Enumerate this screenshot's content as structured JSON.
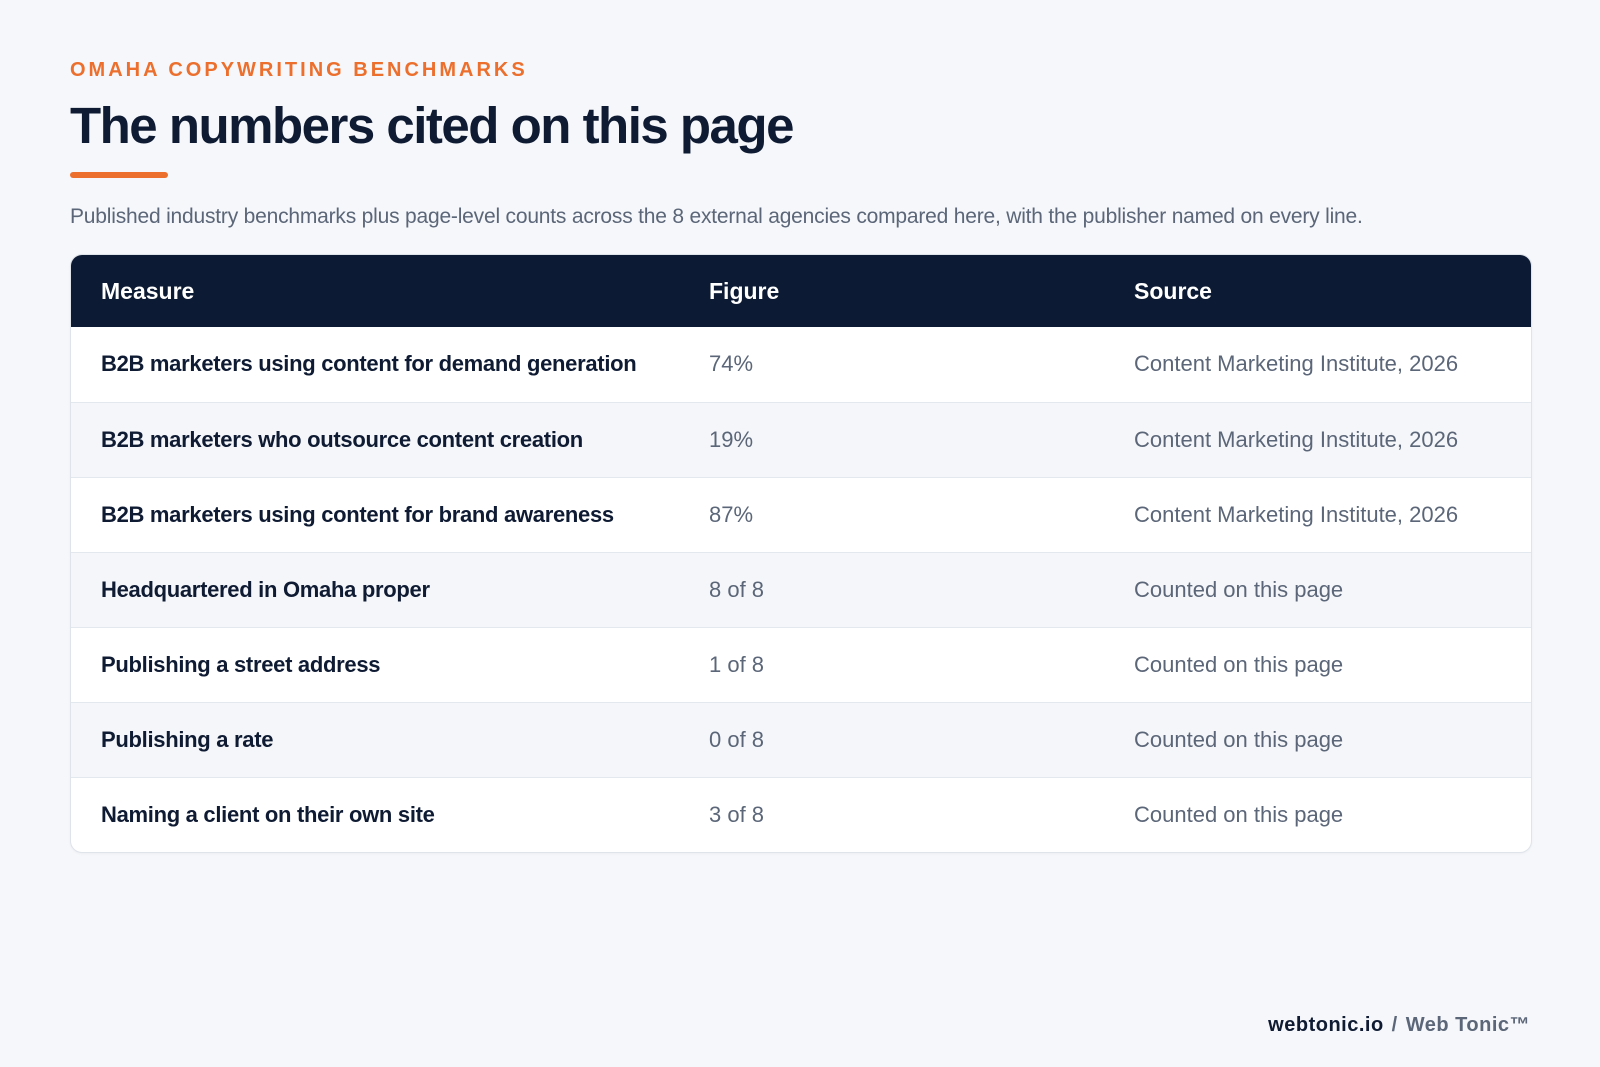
{
  "header": {
    "eyebrow": "OMAHA COPYWRITING BENCHMARKS",
    "title": "The numbers cited on this page",
    "subtitle": "Published industry benchmarks plus page-level counts across the 8 external agencies compared here, with the publisher named on every line."
  },
  "table": {
    "columns": [
      "Measure",
      "Figure",
      "Source"
    ],
    "rows": [
      {
        "measure": "B2B marketers using content for demand generation",
        "figure": "74%",
        "source": "Content Marketing Institute, 2026"
      },
      {
        "measure": "B2B marketers who outsource content creation",
        "figure": "19%",
        "source": "Content Marketing Institute, 2026"
      },
      {
        "measure": "B2B marketers using content for brand awareness",
        "figure": "87%",
        "source": "Content Marketing Institute, 2026"
      },
      {
        "measure": "Headquartered in Omaha proper",
        "figure": "8 of 8",
        "source": "Counted on this page"
      },
      {
        "measure": "Publishing a street address",
        "figure": "1 of 8",
        "source": "Counted on this page"
      },
      {
        "measure": "Publishing a rate",
        "figure": "0 of 8",
        "source": "Counted on this page"
      },
      {
        "measure": "Naming a client on their own site",
        "figure": "3 of 8",
        "source": "Counted on this page"
      }
    ]
  },
  "footer": {
    "domain": "webtonic.io",
    "separator": "/",
    "brand": "Web Tonic™"
  },
  "colors": {
    "accent": "#ec6f2d",
    "header_bg": "#0c1a33",
    "text_dark": "#0f1b33",
    "text_muted": "#5b6678",
    "page_bg": "#f5f7fa"
  }
}
